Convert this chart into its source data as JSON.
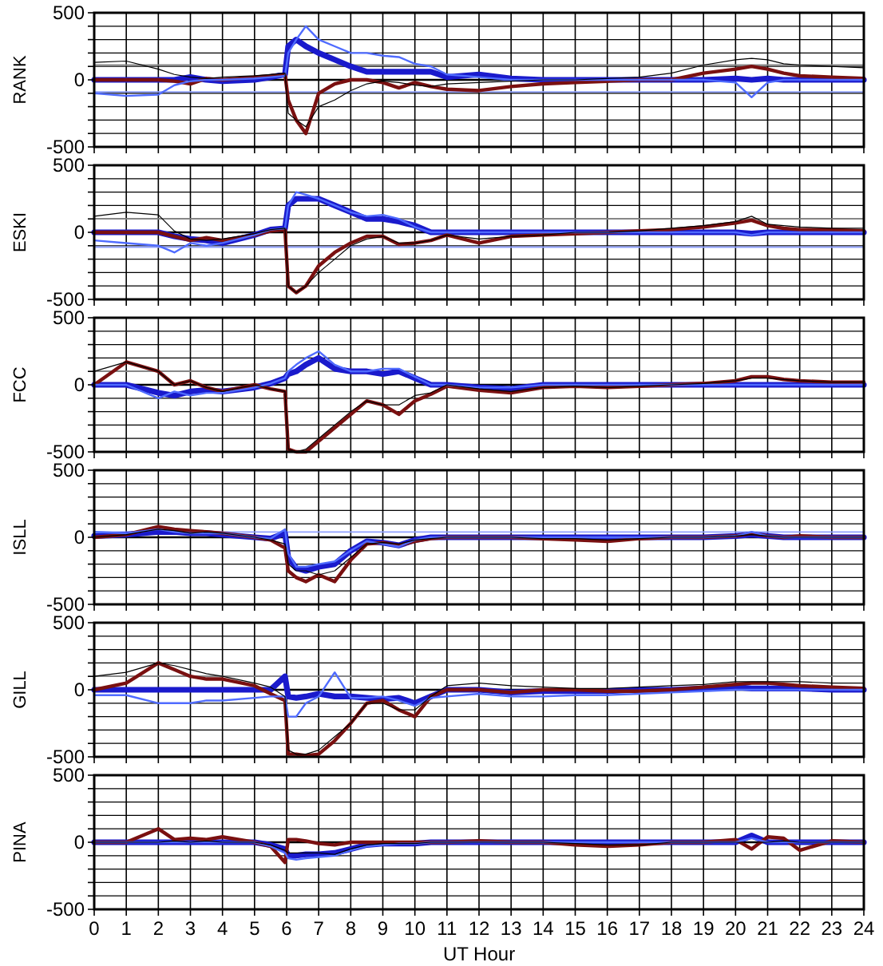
{
  "chart_data": [
    {
      "type": "line",
      "ylabel": "RANK",
      "xlim": [
        0,
        24
      ],
      "ylim": [
        -500,
        500
      ],
      "tick_labels": "y",
      "grid": true,
      "xticks": [
        0,
        1,
        2,
        3,
        4,
        5,
        6,
        7,
        8,
        9,
        10,
        11,
        12,
        13,
        14,
        15,
        16,
        17,
        18,
        19,
        20,
        21,
        22,
        23,
        24
      ],
      "yticks": [
        -500,
        {
          "value": -400,
          "label": null
        },
        {
          "value": -300,
          "label": null
        },
        {
          "value": -200,
          "label": null
        },
        {
          "value": -100,
          "label": null
        },
        0,
        {
          "value": 100,
          "label": null
        },
        {
          "value": 200,
          "label": null
        },
        {
          "value": 300,
          "label": null
        },
        {
          "value": 400,
          "label": null
        },
        500
      ],
      "x": [
        0,
        1,
        2,
        2.5,
        3,
        3.5,
        4,
        5,
        5.5,
        5.95,
        6.05,
        6.3,
        6.6,
        7,
        7.5,
        8,
        8.5,
        9,
        9.5,
        10,
        10.5,
        11,
        12,
        13,
        14,
        15,
        16,
        17,
        18,
        19,
        20,
        20.5,
        21,
        21.5,
        22,
        23,
        24
      ],
      "ref_lines": [
        {
          "axis": "y",
          "value": 110,
          "color": "#888888"
        },
        {
          "axis": "y",
          "value": -90,
          "color": "#8fa0ff"
        }
      ],
      "series": [
        {
          "color": "#000000",
          "values": [
            130,
            140,
            80,
            40,
            20,
            10,
            20,
            30,
            40,
            50,
            -250,
            -300,
            -350,
            -200,
            -150,
            -80,
            -30,
            -10,
            -20,
            -40,
            -50,
            -30,
            -20,
            -10,
            0,
            0,
            10,
            20,
            50,
            110,
            150,
            160,
            150,
            120,
            110,
            100,
            90
          ]
        },
        {
          "color": "#7a1010",
          "values": [
            0,
            0,
            0,
            -10,
            -30,
            10,
            0,
            20,
            30,
            40,
            -150,
            -300,
            -400,
            -100,
            -30,
            0,
            0,
            -20,
            -60,
            -20,
            -50,
            -70,
            -80,
            -50,
            -30,
            -20,
            -10,
            0,
            0,
            50,
            80,
            100,
            80,
            50,
            30,
            20,
            10
          ]
        },
        {
          "color": "#4f6bff",
          "values": [
            -100,
            -120,
            -110,
            -40,
            -10,
            0,
            0,
            10,
            20,
            30,
            200,
            300,
            400,
            300,
            250,
            200,
            200,
            180,
            170,
            120,
            100,
            40,
            20,
            0,
            0,
            0,
            0,
            0,
            0,
            0,
            -20,
            -130,
            -20,
            0,
            0,
            0,
            0
          ]
        },
        {
          "color": "#1a1acc",
          "values": [
            0,
            0,
            0,
            0,
            20,
            0,
            -10,
            0,
            20,
            40,
            250,
            300,
            250,
            200,
            150,
            100,
            60,
            60,
            60,
            60,
            60,
            20,
            40,
            10,
            0,
            0,
            0,
            0,
            0,
            0,
            10,
            0,
            10,
            0,
            0,
            0,
            0
          ]
        }
      ]
    },
    {
      "type": "line",
      "ylabel": "ESKI",
      "xlim": [
        0,
        24
      ],
      "ylim": [
        -500,
        500
      ],
      "tick_labels": "y",
      "grid": true,
      "xticks": [
        0,
        1,
        2,
        3,
        4,
        5,
        6,
        7,
        8,
        9,
        10,
        11,
        12,
        13,
        14,
        15,
        16,
        17,
        18,
        19,
        20,
        21,
        22,
        23,
        24
      ],
      "yticks": [
        -500,
        {
          "value": -400,
          "label": null
        },
        {
          "value": -300,
          "label": null
        },
        {
          "value": -200,
          "label": null
        },
        {
          "value": -100,
          "label": null
        },
        0,
        {
          "value": 100,
          "label": null
        },
        {
          "value": 200,
          "label": null
        },
        {
          "value": 300,
          "label": null
        },
        {
          "value": 400,
          "label": null
        },
        500
      ],
      "x": [
        0,
        1,
        2,
        2.5,
        3,
        3.5,
        4,
        5,
        5.5,
        5.95,
        6.05,
        6.3,
        6.6,
        7,
        7.5,
        8,
        8.5,
        9,
        9.5,
        10,
        10.5,
        11,
        12,
        13,
        14,
        15,
        16,
        17,
        18,
        19,
        20,
        20.5,
        21,
        21.5,
        22,
        23,
        24
      ],
      "ref_lines": [
        {
          "axis": "y",
          "value": 100,
          "color": "#888888"
        },
        {
          "axis": "y",
          "value": -110,
          "color": "#8fa0ff"
        }
      ],
      "series": [
        {
          "color": "#000000",
          "values": [
            120,
            150,
            130,
            10,
            -50,
            -60,
            -50,
            -10,
            20,
            30,
            -400,
            -450,
            -400,
            -300,
            -200,
            -100,
            -50,
            -30,
            -80,
            -80,
            -60,
            -20,
            -50,
            -30,
            -20,
            0,
            0,
            10,
            30,
            50,
            80,
            120,
            60,
            50,
            40,
            30,
            30
          ]
        },
        {
          "color": "#7a1010",
          "values": [
            0,
            0,
            0,
            -30,
            -60,
            -40,
            -60,
            -20,
            10,
            20,
            -400,
            -450,
            -400,
            -250,
            -150,
            -80,
            -30,
            -30,
            -90,
            -80,
            -60,
            -20,
            -80,
            -30,
            -20,
            -10,
            0,
            10,
            20,
            40,
            70,
            90,
            50,
            30,
            20,
            20,
            10
          ]
        },
        {
          "color": "#4f6bff",
          "values": [
            -60,
            -80,
            -100,
            -150,
            -80,
            -100,
            -80,
            -20,
            20,
            30,
            200,
            300,
            280,
            250,
            200,
            150,
            120,
            130,
            100,
            40,
            0,
            0,
            0,
            0,
            0,
            0,
            0,
            0,
            0,
            0,
            0,
            -20,
            0,
            0,
            0,
            0,
            0
          ]
        },
        {
          "color": "#1a1acc",
          "values": [
            0,
            0,
            0,
            -30,
            -50,
            -60,
            -80,
            -20,
            20,
            30,
            200,
            250,
            250,
            250,
            200,
            150,
            100,
            100,
            80,
            50,
            0,
            0,
            0,
            0,
            0,
            0,
            0,
            0,
            0,
            0,
            0,
            -10,
            0,
            0,
            0,
            0,
            0
          ]
        }
      ]
    },
    {
      "type": "line",
      "ylabel": "FCC",
      "xlim": [
        0,
        24
      ],
      "ylim": [
        -500,
        500
      ],
      "tick_labels": "y",
      "grid": true,
      "xticks": [
        0,
        1,
        2,
        3,
        4,
        5,
        6,
        7,
        8,
        9,
        10,
        11,
        12,
        13,
        14,
        15,
        16,
        17,
        18,
        19,
        20,
        21,
        22,
        23,
        24
      ],
      "yticks": [
        -500,
        {
          "value": -400,
          "label": null
        },
        {
          "value": -300,
          "label": null
        },
        {
          "value": -200,
          "label": null
        },
        {
          "value": -100,
          "label": null
        },
        0,
        {
          "value": 100,
          "label": null
        },
        {
          "value": 200,
          "label": null
        },
        {
          "value": 300,
          "label": null
        },
        {
          "value": 400,
          "label": null
        },
        500
      ],
      "x": [
        0,
        1,
        2,
        2.5,
        3,
        3.5,
        4,
        5,
        5.5,
        5.95,
        6.05,
        6.3,
        6.6,
        7,
        7.5,
        8,
        8.5,
        9,
        9.5,
        10,
        10.5,
        11,
        12,
        13,
        14,
        15,
        16,
        17,
        18,
        19,
        20,
        20.5,
        21,
        21.5,
        22,
        23,
        24
      ],
      "ref_lines": [
        {
          "axis": "y",
          "value": 100,
          "color": "#888888"
        }
      ],
      "series": [
        {
          "color": "#000000",
          "values": [
            100,
            170,
            100,
            0,
            30,
            -20,
            -50,
            0,
            -30,
            -50,
            -480,
            -500,
            -480,
            -400,
            -300,
            -200,
            -120,
            -150,
            -150,
            -80,
            -60,
            0,
            -30,
            -50,
            -20,
            -10,
            -20,
            -10,
            0,
            10,
            30,
            50,
            50,
            40,
            30,
            20,
            20
          ]
        },
        {
          "color": "#7a1010",
          "values": [
            0,
            170,
            100,
            0,
            30,
            -20,
            -50,
            0,
            -30,
            -50,
            -480,
            -500,
            -500,
            -420,
            -320,
            -220,
            -120,
            -150,
            -220,
            -120,
            -70,
            -10,
            -40,
            -60,
            -20,
            -10,
            -20,
            -10,
            0,
            10,
            30,
            60,
            60,
            40,
            30,
            20,
            20
          ]
        },
        {
          "color": "#4f6bff",
          "values": [
            0,
            0,
            -100,
            -50,
            -80,
            -60,
            -60,
            -20,
            10,
            50,
            100,
            150,
            200,
            250,
            150,
            100,
            100,
            120,
            120,
            60,
            0,
            0,
            -20,
            -20,
            0,
            0,
            0,
            0,
            0,
            0,
            0,
            0,
            0,
            0,
            0,
            0,
            0
          ]
        },
        {
          "color": "#1a1acc",
          "values": [
            0,
            0,
            -60,
            -80,
            -50,
            -40,
            -50,
            -20,
            10,
            50,
            80,
            100,
            150,
            200,
            120,
            100,
            100,
            80,
            100,
            50,
            0,
            0,
            -20,
            -30,
            0,
            0,
            0,
            0,
            0,
            0,
            0,
            0,
            0,
            0,
            0,
            0,
            0
          ]
        }
      ]
    },
    {
      "type": "line",
      "ylabel": "ISLL",
      "xlim": [
        0,
        24
      ],
      "ylim": [
        -500,
        500
      ],
      "tick_labels": "y",
      "grid": true,
      "xticks": [
        0,
        1,
        2,
        3,
        4,
        5,
        6,
        7,
        8,
        9,
        10,
        11,
        12,
        13,
        14,
        15,
        16,
        17,
        18,
        19,
        20,
        21,
        22,
        23,
        24
      ],
      "yticks": [
        -500,
        {
          "value": -400,
          "label": null
        },
        {
          "value": -300,
          "label": null
        },
        {
          "value": -200,
          "label": null
        },
        {
          "value": -100,
          "label": null
        },
        0,
        {
          "value": 100,
          "label": null
        },
        {
          "value": 200,
          "label": null
        },
        {
          "value": 300,
          "label": null
        },
        {
          "value": 400,
          "label": null
        },
        500
      ],
      "x": [
        0,
        1,
        2,
        2.5,
        3,
        3.5,
        4,
        5,
        5.5,
        5.95,
        6.05,
        6.3,
        6.6,
        7,
        7.5,
        8,
        8.5,
        9,
        9.5,
        10,
        10.5,
        11,
        12,
        13,
        14,
        15,
        16,
        17,
        18,
        19,
        20,
        20.5,
        21,
        21.5,
        22,
        23,
        24
      ],
      "ref_lines": [
        {
          "axis": "y",
          "value": 40,
          "color": "#8fa0ff"
        }
      ],
      "series": [
        {
          "color": "#000000",
          "values": [
            0,
            20,
            60,
            50,
            30,
            40,
            30,
            0,
            -20,
            -50,
            -200,
            -250,
            -250,
            -280,
            -250,
            -150,
            -50,
            -40,
            -50,
            -20,
            -10,
            0,
            0,
            0,
            -10,
            -10,
            -20,
            -10,
            0,
            0,
            10,
            20,
            10,
            0,
            0,
            0,
            0
          ]
        },
        {
          "color": "#7a1010",
          "values": [
            0,
            20,
            80,
            60,
            50,
            40,
            30,
            0,
            -20,
            -80,
            -250,
            -300,
            -330,
            -280,
            -330,
            -170,
            -50,
            -40,
            -60,
            -30,
            -10,
            0,
            0,
            0,
            -10,
            -20,
            -30,
            -10,
            0,
            0,
            10,
            30,
            10,
            0,
            10,
            0,
            0
          ]
        },
        {
          "color": "#4f6bff",
          "values": [
            40,
            30,
            60,
            40,
            30,
            30,
            30,
            0,
            -10,
            60,
            -120,
            -220,
            -220,
            -200,
            -180,
            -100,
            -30,
            -50,
            -70,
            -20,
            0,
            0,
            0,
            0,
            0,
            0,
            0,
            0,
            0,
            0,
            10,
            40,
            10,
            0,
            0,
            0,
            0
          ]
        },
        {
          "color": "#1a1acc",
          "values": [
            10,
            20,
            40,
            40,
            30,
            30,
            20,
            0,
            -10,
            30,
            -150,
            -230,
            -250,
            -220,
            -200,
            -100,
            -30,
            -40,
            -60,
            -20,
            0,
            0,
            0,
            0,
            0,
            0,
            0,
            0,
            0,
            0,
            10,
            20,
            10,
            0,
            0,
            0,
            0
          ]
        }
      ]
    },
    {
      "type": "line",
      "ylabel": "GILL",
      "xlim": [
        0,
        24
      ],
      "ylim": [
        -500,
        500
      ],
      "tick_labels": "y",
      "grid": true,
      "xticks": [
        0,
        1,
        2,
        3,
        4,
        5,
        6,
        7,
        8,
        9,
        10,
        11,
        12,
        13,
        14,
        15,
        16,
        17,
        18,
        19,
        20,
        21,
        22,
        23,
        24
      ],
      "yticks": [
        -500,
        {
          "value": -400,
          "label": null
        },
        {
          "value": -300,
          "label": null
        },
        {
          "value": -200,
          "label": null
        },
        {
          "value": -100,
          "label": null
        },
        0,
        {
          "value": 100,
          "label": null
        },
        {
          "value": 200,
          "label": null
        },
        {
          "value": 300,
          "label": null
        },
        {
          "value": 400,
          "label": null
        },
        500
      ],
      "x": [
        0,
        1,
        2,
        2.5,
        3,
        3.5,
        4,
        5,
        5.5,
        5.95,
        6.05,
        6.3,
        6.6,
        7,
        7.5,
        8,
        8.5,
        9,
        9.5,
        10,
        10.5,
        11,
        12,
        13,
        14,
        15,
        16,
        17,
        18,
        19,
        20,
        20.5,
        21,
        21.5,
        22,
        23,
        24
      ],
      "ref_lines": [
        {
          "axis": "y",
          "value": 100,
          "color": "#888888"
        }
      ],
      "series": [
        {
          "color": "#000000",
          "values": [
            100,
            130,
            200,
            180,
            150,
            120,
            100,
            50,
            20,
            -50,
            -450,
            -480,
            -480,
            -450,
            -350,
            -250,
            -100,
            -100,
            -150,
            -150,
            -50,
            30,
            50,
            30,
            20,
            10,
            10,
            20,
            30,
            40,
            60,
            60,
            60,
            60,
            60,
            50,
            50
          ]
        },
        {
          "color": "#7a1010",
          "values": [
            0,
            50,
            200,
            150,
            100,
            80,
            80,
            30,
            -30,
            -80,
            -480,
            -480,
            -490,
            -480,
            -380,
            -250,
            -100,
            -80,
            -150,
            -200,
            -50,
            0,
            0,
            -20,
            0,
            0,
            -10,
            -10,
            0,
            20,
            40,
            50,
            50,
            40,
            30,
            20,
            10
          ]
        },
        {
          "color": "#4f6bff",
          "values": [
            -40,
            -40,
            -100,
            -100,
            -100,
            -80,
            -80,
            -60,
            -50,
            -50,
            -200,
            -200,
            -100,
            -50,
            130,
            -60,
            -60,
            -50,
            -80,
            -120,
            -60,
            -50,
            -30,
            -50,
            -50,
            -40,
            -40,
            -30,
            -20,
            -10,
            0,
            0,
            0,
            0,
            0,
            0,
            0
          ]
        },
        {
          "color": "#1a1acc",
          "values": [
            0,
            0,
            0,
            0,
            0,
            0,
            0,
            0,
            0,
            100,
            -50,
            -60,
            -50,
            -30,
            -50,
            -50,
            -60,
            -70,
            -60,
            -100,
            -50,
            0,
            0,
            -20,
            -10,
            -10,
            -10,
            0,
            0,
            10,
            20,
            10,
            10,
            10,
            10,
            0,
            0
          ]
        }
      ]
    },
    {
      "type": "line",
      "ylabel": "PINA",
      "xlabel": "UT Hour",
      "xlim": [
        0,
        24
      ],
      "ylim": [
        -500,
        500
      ],
      "grid": true,
      "xticks": [
        0,
        1,
        2,
        3,
        4,
        5,
        6,
        7,
        8,
        9,
        10,
        11,
        12,
        13,
        14,
        15,
        16,
        17,
        18,
        19,
        20,
        21,
        22,
        23,
        24
      ],
      "yticks": [
        -500,
        {
          "value": -400,
          "label": null
        },
        {
          "value": -300,
          "label": null
        },
        {
          "value": -200,
          "label": null
        },
        {
          "value": -100,
          "label": null
        },
        0,
        {
          "value": 100,
          "label": null
        },
        {
          "value": 200,
          "label": null
        },
        {
          "value": 300,
          "label": null
        },
        {
          "value": 400,
          "label": null
        },
        500
      ],
      "x": [
        0,
        1,
        2,
        2.5,
        3,
        3.5,
        4,
        5,
        5.5,
        5.95,
        6.05,
        6.3,
        6.6,
        7,
        7.5,
        8,
        8.5,
        9,
        9.5,
        10,
        10.5,
        11,
        12,
        13,
        14,
        15,
        16,
        17,
        18,
        19,
        20,
        20.5,
        21,
        21.5,
        22,
        23,
        24
      ],
      "series": [
        {
          "color": "#000000",
          "values": [
            0,
            0,
            0,
            10,
            0,
            10,
            0,
            0,
            -20,
            -60,
            -80,
            -80,
            -80,
            -80,
            -90,
            -50,
            -20,
            -10,
            -10,
            -10,
            0,
            0,
            0,
            0,
            0,
            -10,
            -20,
            -20,
            0,
            0,
            0,
            0,
            0,
            10,
            0,
            0,
            0
          ]
        },
        {
          "color": "#7a1010",
          "values": [
            0,
            0,
            100,
            20,
            30,
            20,
            40,
            0,
            -30,
            -150,
            20,
            20,
            10,
            -10,
            -20,
            0,
            0,
            0,
            0,
            0,
            0,
            0,
            10,
            0,
            0,
            -20,
            -30,
            -20,
            0,
            0,
            20,
            -50,
            40,
            30,
            -60,
            10,
            0
          ]
        },
        {
          "color": "#4f6bff",
          "values": [
            0,
            0,
            0,
            0,
            0,
            0,
            0,
            0,
            -30,
            -80,
            -120,
            -130,
            -120,
            -110,
            -100,
            -60,
            -30,
            -20,
            -10,
            -10,
            0,
            0,
            0,
            0,
            0,
            0,
            0,
            0,
            0,
            0,
            0,
            30,
            0,
            0,
            0,
            0,
            0
          ]
        },
        {
          "color": "#1a1acc",
          "values": [
            0,
            0,
            0,
            0,
            0,
            0,
            0,
            0,
            -20,
            -50,
            -100,
            -100,
            -90,
            -90,
            -80,
            -50,
            -20,
            -10,
            -10,
            -10,
            0,
            0,
            0,
            0,
            0,
            0,
            0,
            0,
            0,
            0,
            0,
            50,
            0,
            0,
            0,
            0,
            0
          ]
        }
      ]
    }
  ]
}
